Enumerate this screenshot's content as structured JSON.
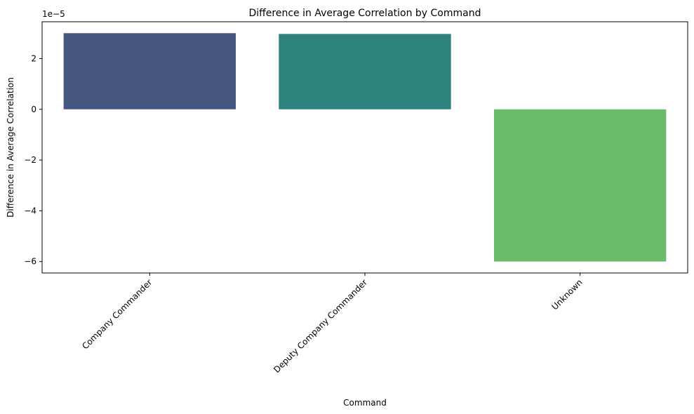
{
  "chart_data": {
    "type": "bar",
    "title": "Difference in Average Correlation by Command",
    "xlabel": "Command",
    "ylabel": "Difference in Average Correlation",
    "y_offset_label": "1e−5",
    "categories": [
      "Company Commander",
      "Deputy Company Commander",
      "Unknown"
    ],
    "values": [
      3.0,
      2.97,
      -6.0
    ],
    "value_multiplier": 1e-05,
    "colors": [
      "#46577f",
      "#2e837c",
      "#6bbb6b"
    ],
    "ylim": [
      -6.45,
      3.45
    ],
    "yticks": [
      -6,
      -4,
      -2,
      0,
      2
    ],
    "ytick_labels": [
      "−6",
      "−4",
      "−2",
      "0",
      "2"
    ],
    "grid": false,
    "legend": "none"
  }
}
